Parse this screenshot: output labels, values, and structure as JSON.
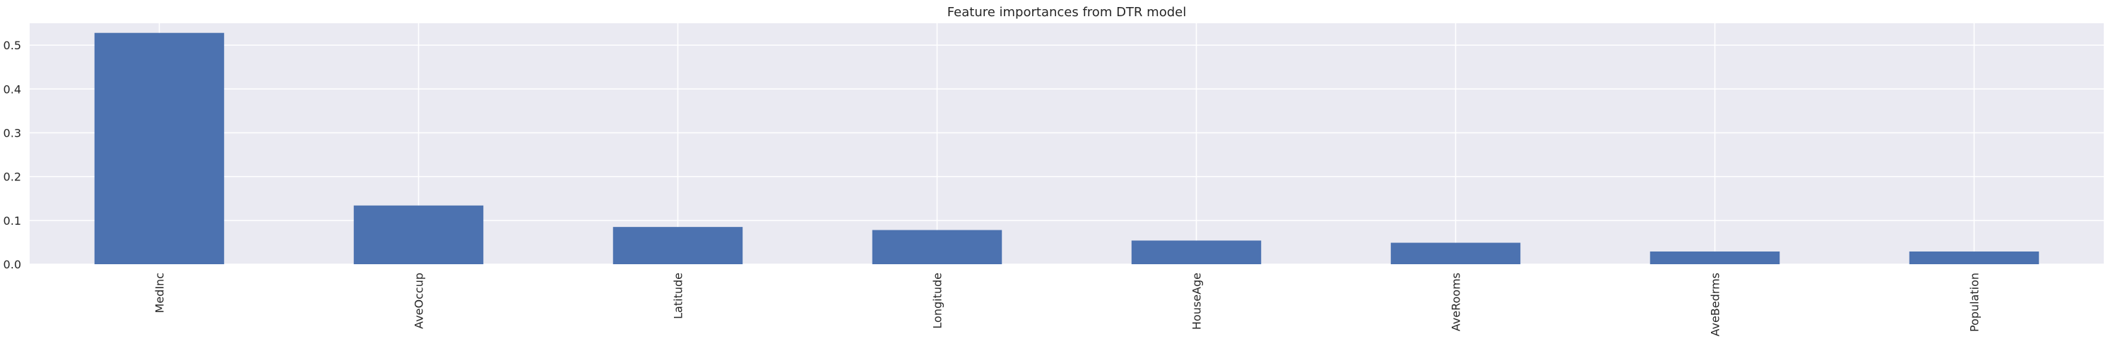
{
  "chart_data": {
    "type": "bar",
    "title": "Feature importances from DTR model",
    "xlabel": "",
    "ylabel": "",
    "categories": [
      "MedInc",
      "AveOccup",
      "Latitude",
      "Longitude",
      "HouseAge",
      "AveRooms",
      "AveBedrms",
      "Population"
    ],
    "values": [
      0.528,
      0.134,
      0.085,
      0.078,
      0.054,
      0.049,
      0.029,
      0.029
    ],
    "ylim": [
      0,
      0.55
    ],
    "yticks": [
      0.0,
      0.1,
      0.2,
      0.3,
      0.4,
      0.5
    ],
    "ytick_labels": [
      "0.0",
      "0.1",
      "0.2",
      "0.3",
      "0.4",
      "0.5"
    ],
    "grid": true,
    "legend": "none",
    "colors": {
      "bar": "#4c72b0",
      "plot_background": "#eaeaf2",
      "grid": "#ffffff",
      "text": "#262626"
    }
  }
}
